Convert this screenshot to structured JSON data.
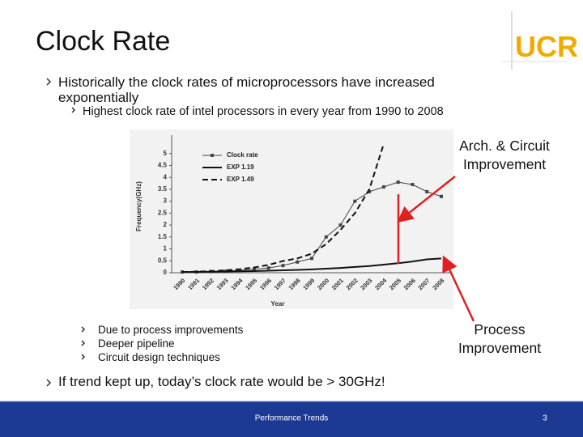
{
  "slide": {
    "title": "Clock Rate",
    "logo": "UCR",
    "bullets": [
      {
        "text": "Historically the clock rates of microprocessors have increased exponentially",
        "sub": [
          "Highest clock rate of intel processors in every year from 1990 to 2008"
        ]
      },
      {
        "text": "If trend kept up, today’s clock rate would be > 30GHz!"
      }
    ],
    "reasons": [
      "Due to process improvements",
      "Deeper pipeline",
      "Circuit design techniques"
    ],
    "footer": "Performance Trends",
    "page_number": "3"
  },
  "chart_data": {
    "type": "line",
    "x_label": "Year",
    "y_label": "Frequency(GHz)",
    "categories": [
      "1990",
      "1991",
      "1992",
      "1993",
      "1994",
      "1995",
      "1996",
      "1997",
      "1998",
      "1999",
      "2000",
      "2001",
      "2002",
      "2003",
      "2004",
      "2005",
      "2006",
      "2007",
      "2008"
    ],
    "series": [
      {
        "name": "Clock rate",
        "color": "#444444",
        "style": "marker",
        "values": [
          0.03,
          0.03,
          0.05,
          0.06,
          0.1,
          0.15,
          0.2,
          0.3,
          0.45,
          0.6,
          1.5,
          2.0,
          3.0,
          3.4,
          3.6,
          3.8,
          3.7,
          3.4,
          3.2
        ]
      },
      {
        "name": "EXP 1.19",
        "color": "#111111",
        "style": "solid",
        "values": [
          0.03,
          0.036,
          0.042,
          0.05,
          0.06,
          0.07,
          0.085,
          0.1,
          0.12,
          0.14,
          0.17,
          0.2,
          0.24,
          0.28,
          0.34,
          0.4,
          0.47,
          0.56,
          0.6
        ]
      },
      {
        "name": "EXP 1.49",
        "color": "#111111",
        "style": "dashed",
        "values": [
          0.03,
          0.045,
          0.067,
          0.1,
          0.15,
          0.22,
          0.33,
          0.49,
          0.6,
          0.8,
          1.2,
          1.8,
          2.5,
          3.5,
          5.4,
          null,
          null,
          null,
          null
        ]
      }
    ],
    "ylim": [
      0,
      5.5
    ],
    "yticks": [
      0,
      0.5,
      1,
      1.5,
      2,
      2.5,
      3,
      3.5,
      4,
      4.5,
      5
    ],
    "legend": "top-left",
    "annotations": [
      {
        "text": "Arch. & Circuit Improvement",
        "color": "#e02020"
      },
      {
        "text": "Process Improvement",
        "color": "#e02020"
      }
    ]
  }
}
